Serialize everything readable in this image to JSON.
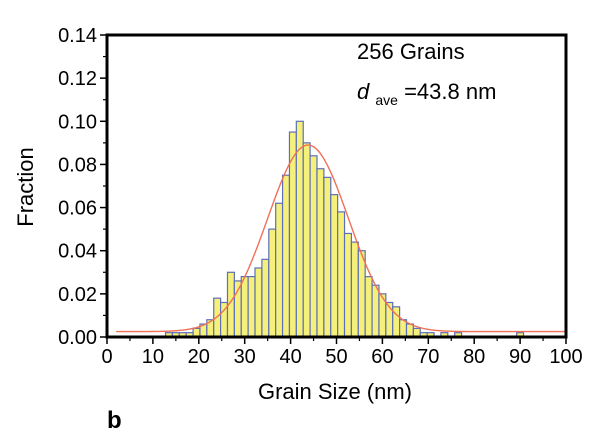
{
  "chart_data": {
    "type": "bar",
    "xlabel": "Grain Size (nm)",
    "ylabel": "Fraction",
    "xlim": [
      0,
      100
    ],
    "ylim": [
      0,
      0.14
    ],
    "xticks": [
      "0",
      "10",
      "20",
      "30",
      "40",
      "50",
      "60",
      "70",
      "80",
      "90",
      "100"
    ],
    "yticks": [
      "0.00",
      "0.02",
      "0.04",
      "0.06",
      "0.08",
      "0.10",
      "0.12",
      "0.14"
    ],
    "bar_width": 1.5,
    "bars": [
      {
        "x": 13.5,
        "y": 0.002
      },
      {
        "x": 15,
        "y": 0.002
      },
      {
        "x": 16.5,
        "y": 0.002
      },
      {
        "x": 18,
        "y": 0.002
      },
      {
        "x": 19.5,
        "y": 0.004
      },
      {
        "x": 21,
        "y": 0.006
      },
      {
        "x": 22.5,
        "y": 0.008
      },
      {
        "x": 24,
        "y": 0.018
      },
      {
        "x": 25.5,
        "y": 0.016
      },
      {
        "x": 27,
        "y": 0.03
      },
      {
        "x": 28.5,
        "y": 0.026
      },
      {
        "x": 30,
        "y": 0.028
      },
      {
        "x": 31.5,
        "y": 0.028
      },
      {
        "x": 33,
        "y": 0.032
      },
      {
        "x": 34.5,
        "y": 0.036
      },
      {
        "x": 36,
        "y": 0.05
      },
      {
        "x": 37.5,
        "y": 0.062
      },
      {
        "x": 39,
        "y": 0.075
      },
      {
        "x": 40.5,
        "y": 0.095
      },
      {
        "x": 42,
        "y": 0.1
      },
      {
        "x": 43.5,
        "y": 0.09
      },
      {
        "x": 45,
        "y": 0.084
      },
      {
        "x": 46.5,
        "y": 0.078
      },
      {
        "x": 48,
        "y": 0.074
      },
      {
        "x": 49.5,
        "y": 0.066
      },
      {
        "x": 51,
        "y": 0.058
      },
      {
        "x": 52.5,
        "y": 0.048
      },
      {
        "x": 54,
        "y": 0.044
      },
      {
        "x": 55.5,
        "y": 0.04
      },
      {
        "x": 57,
        "y": 0.028
      },
      {
        "x": 58.5,
        "y": 0.024
      },
      {
        "x": 60,
        "y": 0.02
      },
      {
        "x": 61.5,
        "y": 0.016
      },
      {
        "x": 63,
        "y": 0.014
      },
      {
        "x": 64.5,
        "y": 0.008
      },
      {
        "x": 66,
        "y": 0.006
      },
      {
        "x": 67.5,
        "y": 0.004
      },
      {
        "x": 69,
        "y": 0.002
      },
      {
        "x": 70.5,
        "y": 0.002
      },
      {
        "x": 73.5,
        "y": 0.002
      },
      {
        "x": 76.5,
        "y": 0.002
      },
      {
        "x": 90,
        "y": 0.002
      }
    ],
    "fit": {
      "type": "gaussian",
      "center": 43.8,
      "sigma": 8.8,
      "amplitude": 0.0865,
      "offset": 0.0025,
      "x_range": [
        2,
        100
      ]
    },
    "annotations": {
      "count": "256 Grains",
      "d_symbol": "d",
      "d_subscript": "ave",
      "d_value": "=43.8 nm"
    },
    "panel_label": "b",
    "grid": false,
    "colors": {
      "bar_fill": "#f5f07a",
      "bar_stroke": "#5d6fb8",
      "fit": "#f07058",
      "axis": "#000000"
    }
  }
}
